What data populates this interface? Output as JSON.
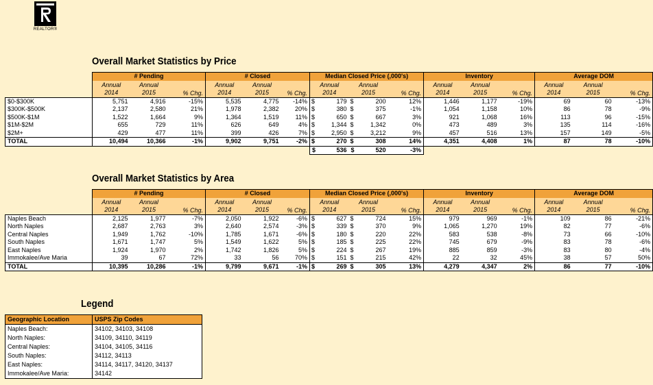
{
  "logo": {
    "caption": "REALTOR®",
    "icon": "realtor-r-logo"
  },
  "price_section": {
    "title": "Overall Market Statistics by Price",
    "groups": [
      "# Pending",
      "# Closed",
      "Median Closed Price (,000's)",
      "Inventory",
      "Average DOM"
    ],
    "subheaders": {
      "annual": "Annual",
      "y2014": "2014",
      "y2015": "2015",
      "pct": "% Chg."
    },
    "currency": "$",
    "rows": [
      {
        "label": "$0-$300K",
        "pending": [
          "5,751",
          "4,916",
          "-15%"
        ],
        "closed": [
          "5,535",
          "4,775",
          "-14%"
        ],
        "median": [
          "179",
          "200",
          "12%"
        ],
        "inventory": [
          "1,446",
          "1,177",
          "-19%"
        ],
        "dom": [
          "69",
          "60",
          "-13%"
        ]
      },
      {
        "label": "$300K-$500K",
        "pending": [
          "2,137",
          "2,580",
          "21%"
        ],
        "closed": [
          "1,978",
          "2,382",
          "20%"
        ],
        "median": [
          "380",
          "375",
          "-1%"
        ],
        "inventory": [
          "1,054",
          "1,158",
          "10%"
        ],
        "dom": [
          "86",
          "78",
          "-9%"
        ]
      },
      {
        "label": "$500K-$1M",
        "pending": [
          "1,522",
          "1,664",
          "9%"
        ],
        "closed": [
          "1,364",
          "1,519",
          "11%"
        ],
        "median": [
          "650",
          "667",
          "3%"
        ],
        "inventory": [
          "921",
          "1,068",
          "16%"
        ],
        "dom": [
          "113",
          "96",
          "-15%"
        ]
      },
      {
        "label": "$1M-$2M",
        "pending": [
          "655",
          "729",
          "11%"
        ],
        "closed": [
          "626",
          "649",
          "4%"
        ],
        "median": [
          "1,344",
          "1,342",
          "0%"
        ],
        "inventory": [
          "473",
          "489",
          "3%"
        ],
        "dom": [
          "135",
          "114",
          "-16%"
        ]
      },
      {
        "label": "$2M+",
        "pending": [
          "429",
          "477",
          "11%"
        ],
        "closed": [
          "399",
          "426",
          "7%"
        ],
        "median": [
          "2,950",
          "3,212",
          "9%"
        ],
        "inventory": [
          "457",
          "516",
          "13%"
        ],
        "dom": [
          "157",
          "149",
          "-5%"
        ]
      }
    ],
    "total": {
      "label": "TOTAL",
      "pending": [
        "10,494",
        "10,366",
        "-1%"
      ],
      "closed": [
        "9,902",
        "9,751",
        "-2%"
      ],
      "median": [
        "270",
        "308",
        "14%"
      ],
      "inventory": [
        "4,351",
        "4,408",
        "1%"
      ],
      "dom": [
        "87",
        "78",
        "-10%"
      ]
    },
    "extra_median": [
      "536",
      "520",
      "-3%"
    ]
  },
  "area_section": {
    "title": "Overall Market Statistics by Area",
    "rows": [
      {
        "label": "Naples Beach",
        "pending": [
          "2,125",
          "1,977",
          "-7%"
        ],
        "closed": [
          "2,050",
          "1,922",
          "-6%"
        ],
        "median": [
          "627",
          "724",
          "15%"
        ],
        "inventory": [
          "979",
          "969",
          "-1%"
        ],
        "dom": [
          "109",
          "86",
          "-21%"
        ]
      },
      {
        "label": "North Naples",
        "pending": [
          "2,687",
          "2,763",
          "3%"
        ],
        "closed": [
          "2,640",
          "2,574",
          "-3%"
        ],
        "median": [
          "339",
          "370",
          "9%"
        ],
        "inventory": [
          "1,065",
          "1,270",
          "19%"
        ],
        "dom": [
          "82",
          "77",
          "-6%"
        ]
      },
      {
        "label": "Central Naples",
        "pending": [
          "1,949",
          "1,762",
          "-10%"
        ],
        "closed": [
          "1,785",
          "1,671",
          "-6%"
        ],
        "median": [
          "180",
          "220",
          "22%"
        ],
        "inventory": [
          "583",
          "538",
          "-8%"
        ],
        "dom": [
          "73",
          "66",
          "-10%"
        ]
      },
      {
        "label": "South Naples",
        "pending": [
          "1,671",
          "1,747",
          "5%"
        ],
        "closed": [
          "1,549",
          "1,622",
          "5%"
        ],
        "median": [
          "185",
          "225",
          "22%"
        ],
        "inventory": [
          "745",
          "679",
          "-9%"
        ],
        "dom": [
          "83",
          "78",
          "-6%"
        ]
      },
      {
        "label": "East Naples",
        "pending": [
          "1,924",
          "1,970",
          "2%"
        ],
        "closed": [
          "1,742",
          "1,826",
          "5%"
        ],
        "median": [
          "224",
          "267",
          "19%"
        ],
        "inventory": [
          "885",
          "859",
          "-3%"
        ],
        "dom": [
          "83",
          "80",
          "-4%"
        ]
      },
      {
        "label": "Immokalee/Ave Maria",
        "pending": [
          "39",
          "67",
          "72%"
        ],
        "closed": [
          "33",
          "56",
          "70%"
        ],
        "median": [
          "151",
          "215",
          "42%"
        ],
        "inventory": [
          "22",
          "32",
          "45%"
        ],
        "dom": [
          "38",
          "57",
          "50%"
        ]
      }
    ],
    "total": {
      "label": "TOTAL",
      "pending": [
        "10,395",
        "10,286",
        "-1%"
      ],
      "closed": [
        "9,799",
        "9,671",
        "-1%"
      ],
      "median": [
        "269",
        "305",
        "13%"
      ],
      "inventory": [
        "4,279",
        "4,347",
        "2%"
      ],
      "dom": [
        "86",
        "77",
        "-10%"
      ]
    }
  },
  "legend": {
    "title": "Legend",
    "headers": [
      "Geographic Location",
      "USPS Zip Codes"
    ],
    "rows": [
      [
        "Naples Beach:",
        "34102, 34103, 34108"
      ],
      [
        "North Naples:",
        "34109, 34110, 34119"
      ],
      [
        "Central Naples:",
        "34104, 34105, 34116"
      ],
      [
        "South Naples:",
        "34112, 34113"
      ],
      [
        "East Naples:",
        "34114, 34117, 34120, 34137"
      ],
      [
        "Immokalee/Ave Maria:",
        "34142"
      ]
    ]
  }
}
